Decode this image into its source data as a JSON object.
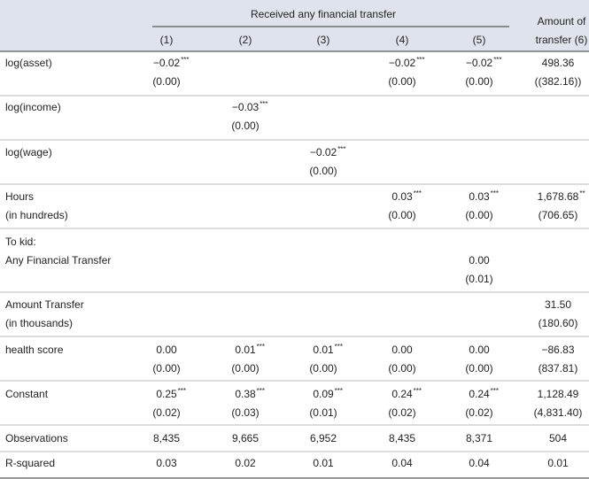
{
  "header": {
    "group_label": "Received any financial transfer",
    "columns": [
      "(1)",
      "(2)",
      "(3)",
      "(4)",
      "(5)"
    ],
    "last_column": [
      "Amount of",
      "transfer (6)"
    ]
  },
  "rows": [
    {
      "label": [
        "log(asset)"
      ],
      "cells": [
        {
          "est": "−0.02",
          "stars": "***",
          "se": "(0.00)"
        },
        null,
        null,
        {
          "est": "−0.02",
          "stars": "***",
          "se": "(0.00)"
        },
        {
          "est": "−0.02",
          "stars": "***",
          "se": "(0.00)"
        },
        {
          "est": "498.36",
          "se": "((382.16))"
        }
      ]
    },
    {
      "label": [
        "log(income)"
      ],
      "cells": [
        null,
        {
          "est": "−0.03",
          "stars": "***",
          "se": "(0.00)"
        },
        null,
        null,
        null,
        null
      ]
    },
    {
      "label": [
        "log(wage)"
      ],
      "cells": [
        null,
        null,
        {
          "est": "−0.02",
          "stars": "***",
          "se": "(0.00)"
        },
        null,
        null,
        null
      ]
    },
    {
      "label": [
        "Hours",
        "(in hundreds)"
      ],
      "cells": [
        null,
        null,
        null,
        {
          "est": "0.03",
          "stars": "***",
          "se": "(0.00)"
        },
        {
          "est": "0.03",
          "stars": "***",
          "se": "(0.00)"
        },
        {
          "est": "1,678.68",
          "stars": "**",
          "se": "(706.65)"
        }
      ]
    },
    {
      "label": [
        "To kid:"
      ],
      "cells": [
        null,
        null,
        null,
        null,
        null,
        null
      ]
    },
    {
      "label": [
        "Any Financial Transfer"
      ],
      "cells": [
        null,
        null,
        null,
        null,
        {
          "est": "0.00",
          "se": "(0.01)"
        },
        null
      ]
    },
    {
      "label": [
        "Amount Transfer",
        "(in thousands)"
      ],
      "cells": [
        null,
        null,
        null,
        null,
        null,
        {
          "est": "31.50",
          "se": "(180.60)"
        }
      ]
    },
    {
      "label": [
        "health score"
      ],
      "cells": [
        {
          "est": "0.00",
          "se": "(0.00)"
        },
        {
          "est": "0.01",
          "stars": "***",
          "se": "(0.00)"
        },
        {
          "est": "0.01",
          "stars": "***",
          "se": "(0.00)"
        },
        {
          "est": "0.00",
          "se": "(0.00)"
        },
        {
          "est": "0.00",
          "se": "(0.00)"
        },
        {
          "est": "−86.83",
          "se": "(837.81)"
        }
      ]
    },
    {
      "label": [
        "Constant"
      ],
      "cells": [
        {
          "est": "0.25",
          "stars": "***",
          "se": "(0.02)"
        },
        {
          "est": "0.38",
          "stars": "***",
          "se": "(0.03)"
        },
        {
          "est": "0.09",
          "stars": "***",
          "se": "(0.01)"
        },
        {
          "est": "0.24",
          "stars": "***",
          "se": "(0.02)"
        },
        {
          "est": "0.24",
          "stars": "***",
          "se": "(0.02)"
        },
        {
          "est": "1,128.49",
          "se": "(4,831.40)"
        }
      ]
    },
    {
      "label": [
        "Observations"
      ],
      "cells": [
        {
          "est": "8,435"
        },
        {
          "est": "9,665"
        },
        {
          "est": "6,952"
        },
        {
          "est": "8,435"
        },
        {
          "est": "8,371"
        },
        {
          "est": "504"
        }
      ]
    },
    {
      "label": [
        "R-squared"
      ],
      "cells": [
        {
          "est": "0.03"
        },
        {
          "est": "0.02"
        },
        {
          "est": "0.01"
        },
        {
          "est": "0.04"
        },
        {
          "est": "0.04"
        },
        {
          "est": "0.01"
        }
      ]
    }
  ]
}
